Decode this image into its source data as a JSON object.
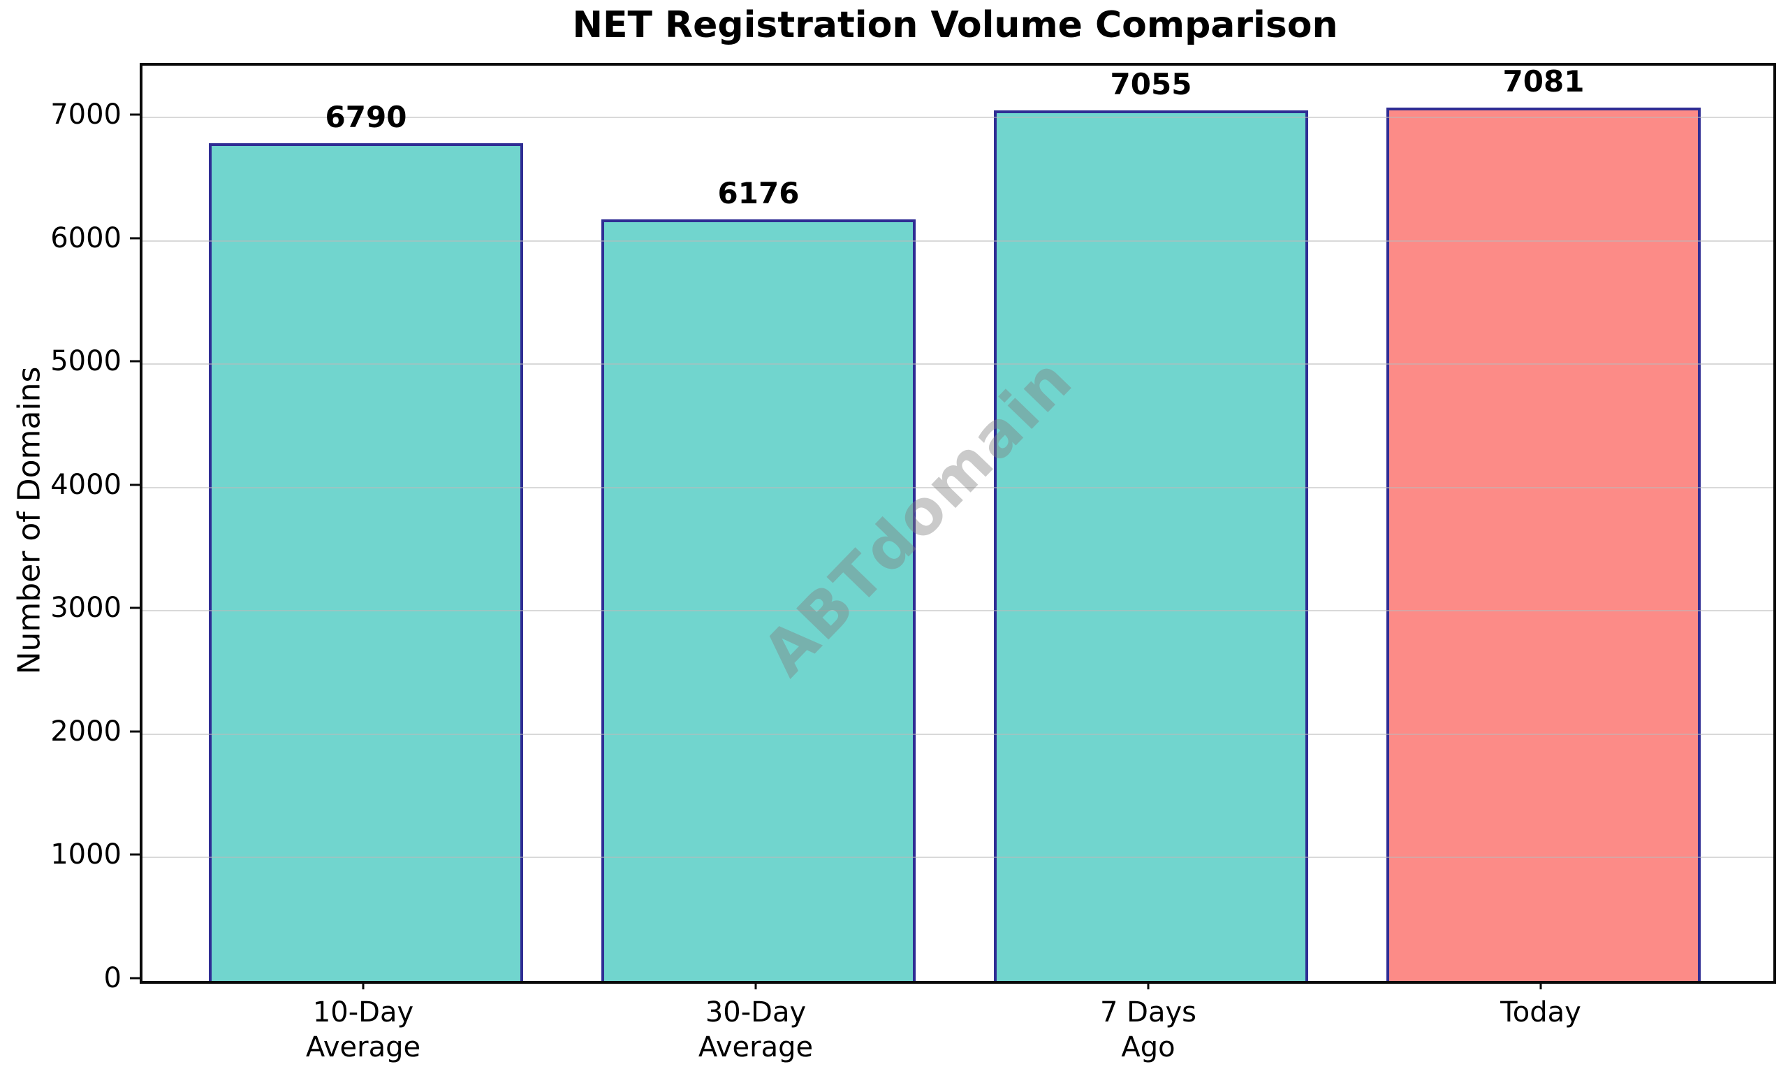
{
  "chart_data": {
    "type": "bar",
    "title": "NET Registration Volume Comparison",
    "ylabel": "Number of Domains",
    "xlabel": "",
    "categories": [
      [
        "10-Day",
        "Average"
      ],
      [
        "30-Day",
        "Average"
      ],
      [
        "7 Days",
        "Ago"
      ],
      [
        "Today"
      ]
    ],
    "category_slugs": [
      "10-day-average",
      "30-day-average",
      "7-days-ago",
      "today"
    ],
    "values": [
      6790,
      6176,
      7055,
      7081
    ],
    "value_labels": [
      "6790",
      "6176",
      "7055",
      "7081"
    ],
    "yticks": [
      0,
      1000,
      2000,
      3000,
      4000,
      5000,
      6000,
      7000
    ],
    "ylim": [
      0,
      7420
    ],
    "grid": true,
    "legend_position": "none",
    "watermark": {
      "text": "ABTdomain",
      "rotation_deg": -46
    },
    "colors": {
      "bar_fills": [
        "#71d5ce",
        "#71d5ce",
        "#71d5ce",
        "#fc8b87"
      ],
      "bar_edge": "#2f2d94",
      "gridline": "rgba(185,185,185,0.55)",
      "axis": "#0a0a0a",
      "text": "#000000",
      "watermark": "rgba(128,128,128,0.42)"
    }
  }
}
